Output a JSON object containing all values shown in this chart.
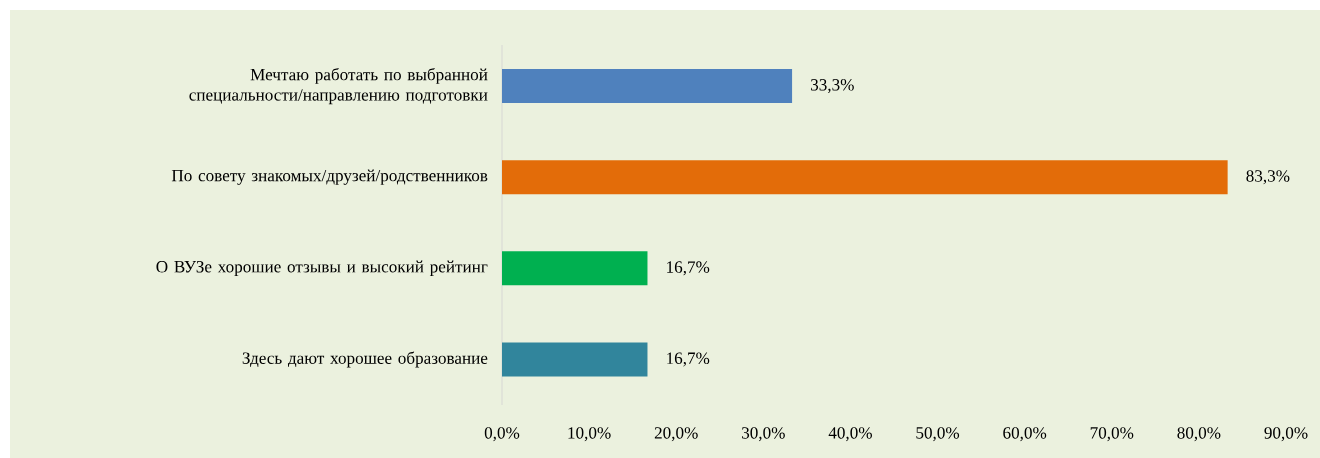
{
  "chart_data": {
    "type": "bar",
    "orientation": "horizontal",
    "categories": [
      "Мечтаю работать по выбранной специальности/направлению подготовки",
      "По совету знакомых/друзей/родственников",
      "О ВУЗе хорошие отзывы и высокий рейтинг",
      "Здесь дают хорошее образование"
    ],
    "values": [
      33.3,
      83.3,
      16.7,
      16.7
    ],
    "colors": [
      "#4f81bd",
      "#e36c09",
      "#00b050",
      "#31859c"
    ],
    "value_labels": [
      "33,3%",
      "83,3%",
      "16,7%",
      "16,7%"
    ],
    "xlim": [
      0,
      90
    ],
    "xticks": [
      {
        "value": 0,
        "label": "0,0%"
      },
      {
        "value": 10,
        "label": "10,0%"
      },
      {
        "value": 20,
        "label": "20,0%"
      },
      {
        "value": 30,
        "label": "30,0%"
      },
      {
        "value": 40,
        "label": "40,0%"
      },
      {
        "value": 50,
        "label": "50,0%"
      },
      {
        "value": 60,
        "label": "60,0%"
      },
      {
        "value": 70,
        "label": "70,0%"
      },
      {
        "value": 80,
        "label": "80,0%"
      },
      {
        "value": 90,
        "label": "90,0%"
      }
    ],
    "grid": false
  }
}
